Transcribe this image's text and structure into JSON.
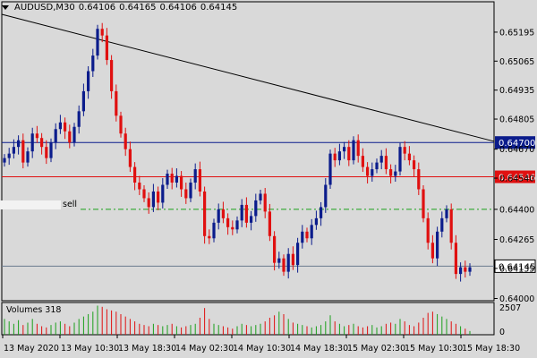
{
  "header": {
    "symbol": "AUDUSD,M30",
    "open": "0.64106",
    "high": "0.64165",
    "low": "0.64106",
    "close": "0.64145"
  },
  "volumes_label": "Volumes 318",
  "order_label": "sell",
  "colors": {
    "background": "#d9d9d9",
    "bull": "#0b1c8c",
    "bear": "#e01010",
    "resistance_line": "#0b1c8c",
    "entry_line": "#e01010",
    "tp_line": "#1aa01a",
    "trend_line": "#000000"
  },
  "chart_data": {
    "type": "candlestick",
    "price_ticks": [
      "0.65195",
      "0.65065",
      "0.64935",
      "0.64805",
      "0.64670",
      "0.64540",
      "0.64400",
      "0.64265",
      "0.64135",
      "0.64000"
    ],
    "volume_ticks": [
      "2507",
      "0"
    ],
    "time_labels": [
      "13 May 2020",
      "13 May 10:30",
      "13 May 18:30",
      "14 May 02:30",
      "14 May 10:30",
      "14 May 18:30",
      "15 May 02:30",
      "15 May 10:30",
      "15 May 18:30"
    ],
    "levels": [
      {
        "label": "0.64700",
        "value": 0.647,
        "style": "solid",
        "color": "#0b1c8c"
      },
      {
        "label": "0.64546",
        "value": 0.64546,
        "style": "solid",
        "color": "#e01010"
      },
      {
        "label": "0.64145",
        "value": 0.64145,
        "style": "solid",
        "color": "#0b1c8c",
        "current": true
      }
    ],
    "tp_level": 0.644,
    "trend_line": {
      "from": [
        0,
        0.65275
      ],
      "to": [
        92,
        0.64705
      ]
    },
    "closes": [
      0.6463,
      0.6465,
      0.6468,
      0.6471,
      0.6461,
      0.6466,
      0.6474,
      0.6472,
      0.6468,
      0.6463,
      0.647,
      0.6476,
      0.6479,
      0.6475,
      0.647,
      0.6477,
      0.6484,
      0.6493,
      0.6502,
      0.6509,
      0.6521,
      0.6518,
      0.6507,
      0.6493,
      0.6482,
      0.6474,
      0.6467,
      0.6459,
      0.6452,
      0.6449,
      0.6445,
      0.6441,
      0.6448,
      0.6443,
      0.6451,
      0.6456,
      0.6452,
      0.6455,
      0.6449,
      0.6445,
      0.6452,
      0.6458,
      0.6448,
      0.6428,
      0.6427,
      0.6434,
      0.644,
      0.6436,
      0.6432,
      0.6431,
      0.6435,
      0.6442,
      0.6434,
      0.6437,
      0.6444,
      0.6447,
      0.6439,
      0.6428,
      0.6416,
      0.6418,
      0.6412,
      0.642,
      0.6415,
      0.6425,
      0.643,
      0.6427,
      0.6433,
      0.6436,
      0.6441,
      0.6451,
      0.6465,
      0.6462,
      0.6466,
      0.6468,
      0.6462,
      0.6471,
      0.6464,
      0.6459,
      0.6455,
      0.6458,
      0.6461,
      0.6464,
      0.6458,
      0.6455,
      0.6457,
      0.6468,
      0.6465,
      0.6462,
      0.6458,
      0.6449,
      0.6436,
      0.6425,
      0.6418,
      0.643,
      0.6436,
      0.644,
      0.6425,
      0.6411,
      0.6414,
      0.6412,
      0.6414
    ],
    "volumes": [
      1300,
      1100,
      900,
      1200,
      800,
      1000,
      1300,
      900,
      700,
      600,
      800,
      1000,
      1100,
      900,
      700,
      1000,
      1300,
      1500,
      1700,
      1900,
      2400,
      2300,
      2100,
      2000,
      1900,
      1700,
      1500,
      1300,
      1100,
      900,
      800,
      700,
      900,
      800,
      700,
      800,
      900,
      700,
      600,
      700,
      800,
      900,
      1400,
      2200,
      1300,
      900,
      800,
      700,
      600,
      500,
      700,
      900,
      800,
      700,
      800,
      900,
      1100,
      1400,
      1600,
      1900,
      1700,
      1300,
      1000,
      900,
      800,
      700,
      600,
      700,
      800,
      1100,
      1600,
      1100,
      900,
      700,
      800,
      900,
      700,
      600,
      700,
      800,
      600,
      700,
      900,
      1000,
      900,
      1300,
      1100,
      800,
      700,
      1000,
      1400,
      1800,
      1900,
      1700,
      1500,
      1300,
      1100,
      900,
      700,
      500,
      300
    ]
  }
}
